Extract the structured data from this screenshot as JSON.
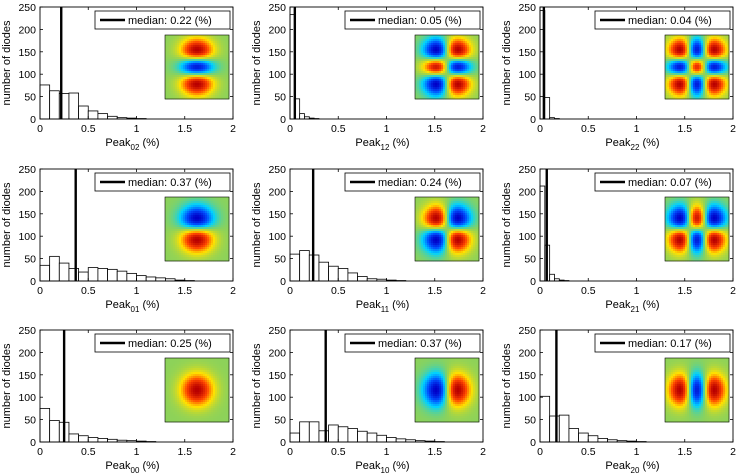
{
  "chart_data": [
    {
      "type": "bar",
      "mode": "02",
      "xlabel": "Peak",
      "subscript": "02",
      "xlabel_unit": " (%)",
      "ylabel": "number of diodes",
      "xlim": [
        0,
        2
      ],
      "ylim": [
        0,
        250
      ],
      "xticks": [
        "0",
        "0.5",
        "1",
        "1.5",
        "2"
      ],
      "yticks": [
        "0",
        "50",
        "100",
        "150",
        "200",
        "250"
      ],
      "bin_width": 0.1,
      "values": [
        76,
        63,
        57,
        58,
        29,
        18,
        12,
        6,
        3,
        2,
        1,
        0,
        0,
        0,
        0,
        0,
        0,
        0,
        0,
        0
      ],
      "median": 0.22,
      "legend": "median: 0.22 (%)"
    },
    {
      "type": "bar",
      "mode": "12",
      "xlabel": "Peak",
      "subscript": "12",
      "xlabel_unit": " (%)",
      "ylabel": "number of diodes",
      "xlim": [
        0,
        2
      ],
      "ylim": [
        0,
        250
      ],
      "xticks": [
        "0",
        "0.5",
        "1",
        "1.5",
        "2"
      ],
      "yticks": [
        "0",
        "50",
        "100",
        "150",
        "200",
        "250"
      ],
      "bin_width": 0.05,
      "values": [
        233,
        45,
        12,
        5,
        2,
        1,
        0,
        0,
        0,
        0,
        0,
        0,
        0,
        0,
        0,
        0,
        0,
        0,
        0,
        0,
        0,
        0,
        0,
        0,
        0,
        0,
        0,
        0,
        0,
        0,
        0,
        0,
        0,
        0,
        0,
        0,
        0,
        0,
        0,
        0
      ],
      "median": 0.05,
      "legend": "median: 0.05 (%)"
    },
    {
      "type": "bar",
      "mode": "22",
      "xlabel": "Peak",
      "subscript": "22",
      "xlabel_unit": " (%)",
      "ylabel": "number of diodes",
      "xlim": [
        0,
        2
      ],
      "ylim": [
        0,
        250
      ],
      "xticks": [
        "0",
        "0.5",
        "1",
        "1.5",
        "2"
      ],
      "yticks": [
        "0",
        "50",
        "100",
        "150",
        "200",
        "250"
      ],
      "bin_width": 0.05,
      "values": [
        242,
        48,
        3,
        1,
        0,
        0,
        0,
        0,
        0,
        0,
        0,
        0,
        0,
        0,
        0,
        0,
        0,
        0,
        0,
        0,
        0,
        0,
        0,
        0,
        0,
        0,
        0,
        0,
        0,
        0,
        0,
        0,
        0,
        0,
        0,
        0,
        0,
        0,
        0,
        0
      ],
      "median": 0.04,
      "legend": "median: 0.04 (%)"
    },
    {
      "type": "bar",
      "mode": "01",
      "xlabel": "Peak",
      "subscript": "01",
      "xlabel_unit": " (%)",
      "ylabel": "number of diodes",
      "xlim": [
        0,
        2
      ],
      "ylim": [
        0,
        250
      ],
      "xticks": [
        "0",
        "0.5",
        "1",
        "1.5",
        "2"
      ],
      "yticks": [
        "0",
        "50",
        "100",
        "150",
        "200",
        "250"
      ],
      "bin_width": 0.1,
      "values": [
        35,
        55,
        40,
        28,
        20,
        30,
        28,
        26,
        22,
        17,
        12,
        9,
        7,
        5,
        2,
        1,
        0,
        0,
        0,
        0
      ],
      "median": 0.37,
      "legend": "median: 0.37 (%)"
    },
    {
      "type": "bar",
      "mode": "11",
      "xlabel": "Peak",
      "subscript": "11",
      "xlabel_unit": " (%)",
      "ylabel": "number of diodes",
      "xlim": [
        0,
        2
      ],
      "ylim": [
        0,
        250
      ],
      "xticks": [
        "0",
        "0.5",
        "1",
        "1.5",
        "2"
      ],
      "yticks": [
        "0",
        "50",
        "100",
        "150",
        "200",
        "250"
      ],
      "bin_width": 0.1,
      "values": [
        60,
        68,
        58,
        42,
        33,
        28,
        18,
        10,
        5,
        4,
        2,
        1,
        0,
        0,
        0,
        0,
        0,
        0,
        0,
        0
      ],
      "median": 0.24,
      "legend": "median: 0.24 (%)"
    },
    {
      "type": "bar",
      "mode": "21",
      "xlabel": "Peak",
      "subscript": "21",
      "xlabel_unit": " (%)",
      "ylabel": "number of diodes",
      "xlim": [
        0,
        2
      ],
      "ylim": [
        0,
        250
      ],
      "xticks": [
        "0",
        "0.5",
        "1",
        "1.5",
        "2"
      ],
      "yticks": [
        "0",
        "50",
        "100",
        "150",
        "200",
        "250"
      ],
      "bin_width": 0.05,
      "values": [
        212,
        80,
        15,
        5,
        2,
        1,
        0,
        0,
        0,
        0,
        0,
        0,
        0,
        0,
        0,
        0,
        0,
        0,
        0,
        0,
        0,
        0,
        0,
        0,
        0,
        0,
        0,
        0,
        0,
        0,
        0,
        0,
        0,
        0,
        0,
        0,
        0,
        0,
        0,
        0
      ],
      "median": 0.07,
      "legend": "median: 0.07 (%)"
    },
    {
      "type": "bar",
      "mode": "00",
      "xlabel": "Peak",
      "subscript": "00",
      "xlabel_unit": " (%)",
      "ylabel": "number of diodes",
      "xlim": [
        0,
        2
      ],
      "ylim": [
        0,
        250
      ],
      "xticks": [
        "0",
        "0.5",
        "1",
        "1.5",
        "2"
      ],
      "yticks": [
        "0",
        "50",
        "100",
        "150",
        "200",
        "250"
      ],
      "bin_width": 0.1,
      "values": [
        75,
        48,
        44,
        18,
        14,
        10,
        8,
        6,
        4,
        3,
        2,
        1,
        0,
        0,
        0,
        0,
        0,
        0,
        0,
        0
      ],
      "median": 0.25,
      "legend": "median: 0.25 (%)"
    },
    {
      "type": "bar",
      "mode": "10",
      "xlabel": "Peak",
      "subscript": "10",
      "xlabel_unit": " (%)",
      "ylabel": "number of diodes",
      "xlim": [
        0,
        2
      ],
      "ylim": [
        0,
        250
      ],
      "xticks": [
        "0",
        "0.5",
        "1",
        "1.5",
        "2"
      ],
      "yticks": [
        "0",
        "50",
        "100",
        "150",
        "200",
        "250"
      ],
      "bin_width": 0.1,
      "values": [
        20,
        45,
        45,
        25,
        38,
        34,
        30,
        24,
        20,
        15,
        10,
        7,
        5,
        3,
        2,
        1,
        0,
        0,
        0,
        0
      ],
      "median": 0.37,
      "legend": "median: 0.37 (%)"
    },
    {
      "type": "bar",
      "mode": "20",
      "xlabel": "Peak",
      "subscript": "20",
      "xlabel_unit": " (%)",
      "ylabel": "number of diodes",
      "xlim": [
        0,
        2
      ],
      "ylim": [
        0,
        250
      ],
      "xticks": [
        "0",
        "0.5",
        "1",
        "1.5",
        "2"
      ],
      "yticks": [
        "0",
        "50",
        "100",
        "150",
        "200",
        "250"
      ],
      "bin_width": 0.1,
      "values": [
        102,
        58,
        60,
        30,
        20,
        14,
        8,
        5,
        3,
        2,
        1,
        0,
        0,
        0,
        0,
        0,
        0,
        0,
        0,
        0
      ],
      "median": 0.17,
      "legend": "median: 0.17 (%)"
    }
  ]
}
